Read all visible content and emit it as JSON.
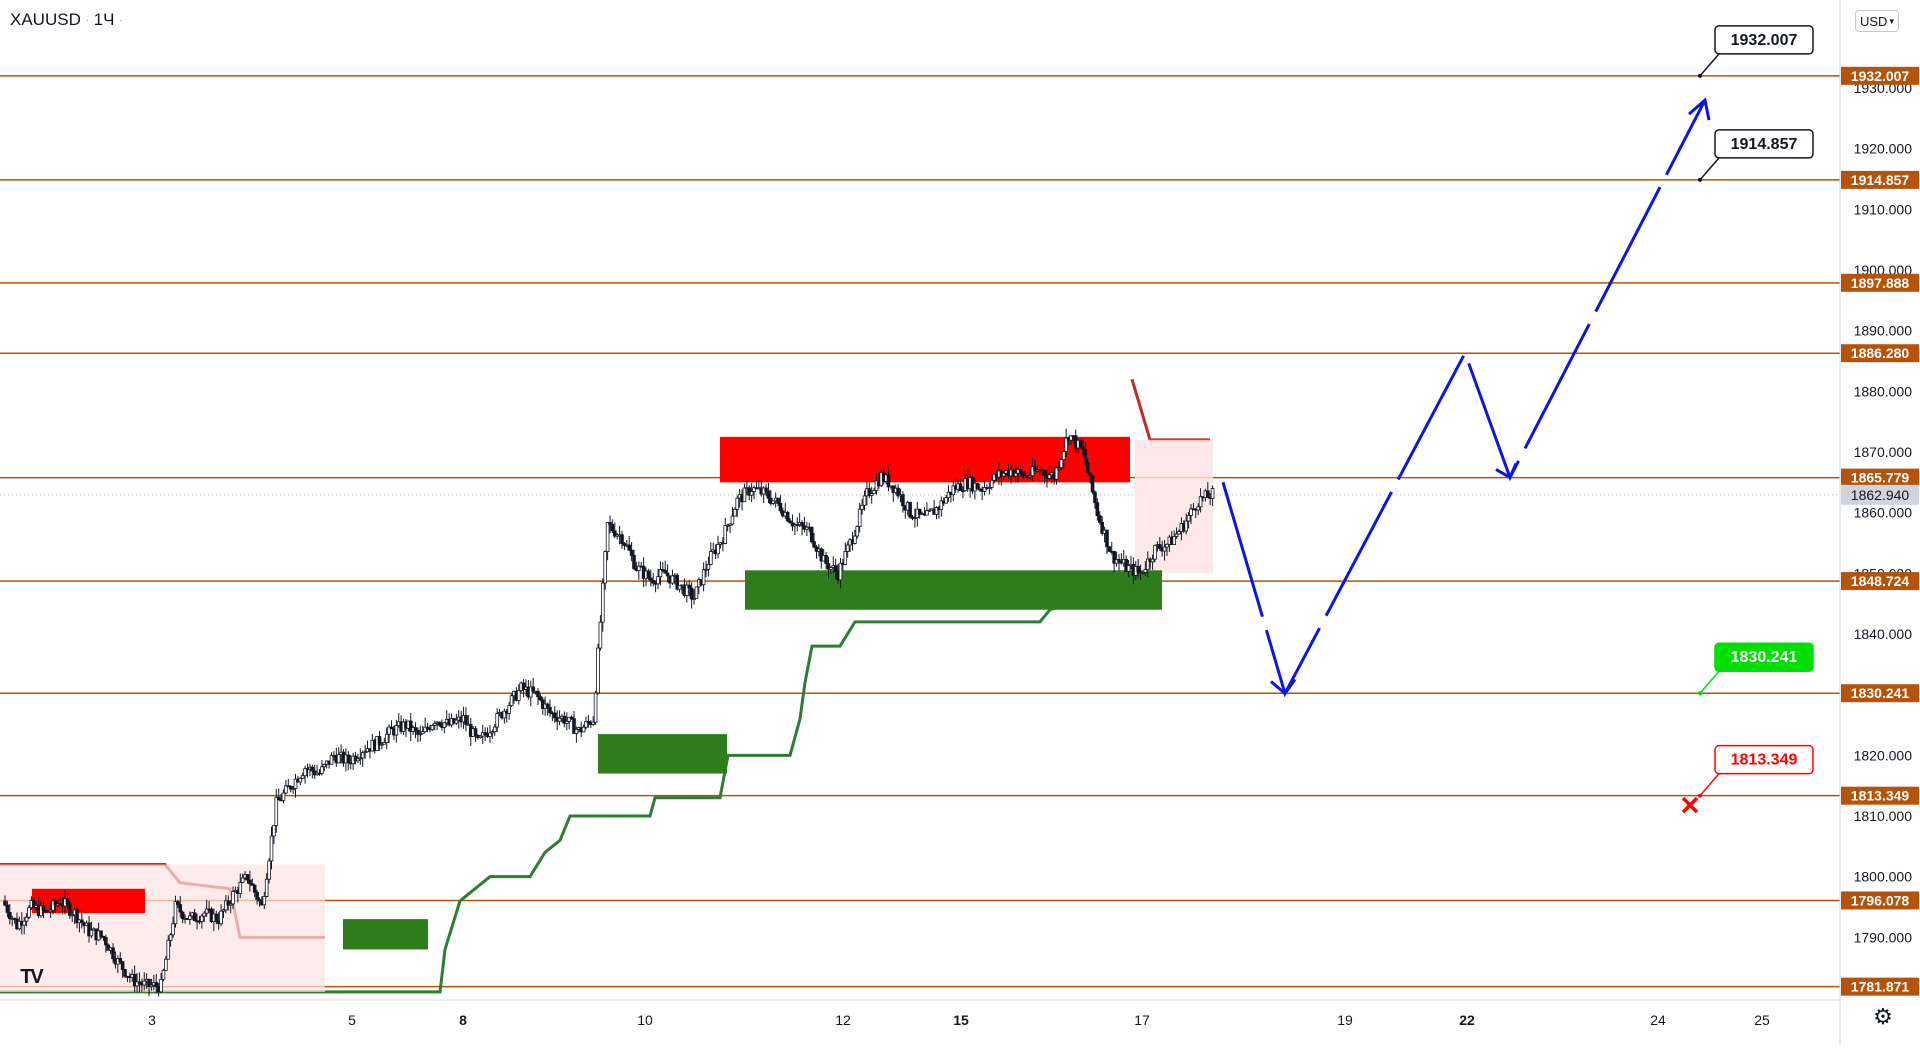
{
  "header": {
    "symbol": "XAUUSD",
    "interval": "1Ч",
    "dot_icon": "status-dot-icon"
  },
  "currency_button": {
    "label": "USD",
    "icon": "chevron-down-icon"
  },
  "logo": {
    "text": "TV",
    "icon": "tradingview-logo-icon"
  },
  "settings": {
    "icon": "gear-icon"
  },
  "colors": {
    "level": "#b45309",
    "bull": "#2e7d32",
    "bear": "#c62828",
    "zone_red": "#ff0000",
    "zone_green": "#2e7d1c",
    "arrow": "#0a17e0",
    "current": "#b2b5be"
  },
  "chart_data": {
    "type": "candlestick",
    "symbol": "XAUUSD",
    "interval": "1Ч",
    "ylim": [
      1781,
      1935
    ],
    "y_ticks": [
      1790,
      1800,
      1810,
      1820,
      1830,
      1840,
      1850,
      1860,
      1870,
      1880,
      1890,
      1900,
      1910,
      1920,
      1930
    ],
    "x_ticks": [
      {
        "label": "3",
        "bold": false
      },
      {
        "label": "5",
        "bold": false
      },
      {
        "label": "8",
        "bold": true
      },
      {
        "label": "10",
        "bold": false
      },
      {
        "label": "12",
        "bold": false
      },
      {
        "label": "15",
        "bold": true
      },
      {
        "label": "17",
        "bold": false
      },
      {
        "label": "19",
        "bold": false
      },
      {
        "label": "22",
        "bold": true
      },
      {
        "label": "24",
        "bold": false
      },
      {
        "label": "25",
        "bold": false
      }
    ],
    "levels": [
      {
        "value": 1932.007,
        "label": "1932.007"
      },
      {
        "value": 1914.857,
        "label": "1914.857"
      },
      {
        "value": 1897.888,
        "label": "1897.888"
      },
      {
        "value": 1886.28,
        "label": "1886.280"
      },
      {
        "value": 1865.779,
        "label": "1865.779"
      },
      {
        "value": 1848.724,
        "label": "1848.724"
      },
      {
        "value": 1830.241,
        "label": "1830.241"
      },
      {
        "value": 1813.349,
        "label": "1813.349"
      },
      {
        "value": 1796.078,
        "label": "1796.078"
      },
      {
        "value": 1781.871,
        "label": "1781.871"
      }
    ],
    "current_price": {
      "value": 1862.94,
      "label": "1862.940"
    },
    "annotations": [
      {
        "label": "1932.007",
        "value": 1932.007,
        "style": "dark"
      },
      {
        "label": "1914.857",
        "value": 1914.857,
        "style": "dark"
      },
      {
        "label": "1830.241",
        "value": 1830.241,
        "style": "green"
      },
      {
        "label": "1813.349",
        "value": 1813.349,
        "style": "red"
      }
    ],
    "projection_path": [
      1865.0,
      1830.2,
      1886.3,
      1865.8,
      1928.0
    ],
    "supply_zones": [
      {
        "from": 1865.0,
        "to": 1872.5
      },
      {
        "from": 1794.0,
        "to": 1798.0
      }
    ],
    "demand_zones": [
      {
        "from": 1844.0,
        "to": 1850.5
      },
      {
        "from": 1817.0,
        "to": 1823.5
      },
      {
        "from": 1788.0,
        "to": 1793.0
      }
    ],
    "price_path": [
      1796,
      1792,
      1795,
      1794,
      1796,
      1794,
      1791,
      1790,
      1786,
      1783,
      1782,
      1782,
      1795,
      1793,
      1794,
      1793,
      1797,
      1800,
      1795,
      1812,
      1815,
      1818,
      1817,
      1820,
      1819,
      1821,
      1822,
      1824,
      1825,
      1823,
      1826,
      1825,
      1826,
      1822,
      1825,
      1828,
      1831,
      1830,
      1827,
      1826,
      1824,
      1826,
      1858,
      1856,
      1851,
      1849,
      1850,
      1848,
      1846,
      1852,
      1856,
      1862,
      1864,
      1863,
      1861,
      1858,
      1857,
      1852,
      1850,
      1856,
      1863,
      1866,
      1864,
      1860,
      1859,
      1861,
      1864,
      1865,
      1864,
      1866,
      1867,
      1866,
      1867,
      1866,
      1873,
      1870,
      1860,
      1853,
      1851,
      1850,
      1854,
      1855,
      1858,
      1862,
      1863
    ]
  }
}
